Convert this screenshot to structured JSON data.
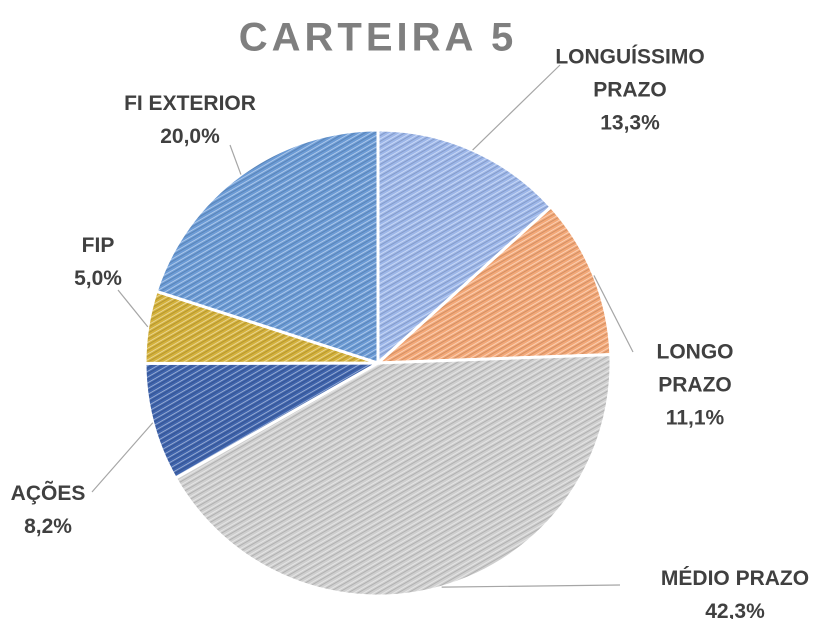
{
  "chart_data": {
    "type": "pie",
    "title": "CARTEIRA 5",
    "categories": [
      "LONGUÍSSIMO PRAZO",
      "LONGO PRAZO",
      "MÉDIO PRAZO",
      "AÇÕES",
      "FIP",
      "FI EXTERIOR"
    ],
    "values": [
      13.3,
      11.1,
      42.3,
      8.2,
      5.0,
      20.0
    ],
    "value_labels": [
      "13,3%",
      "11,1%",
      "42,3%",
      "8,2%",
      "5,0%",
      "20,0%"
    ],
    "colors": [
      "#9db7ea",
      "#f4a877",
      "#cfcfcf",
      "#3f64ad",
      "#d4b13a",
      "#6b9bd6"
    ]
  }
}
